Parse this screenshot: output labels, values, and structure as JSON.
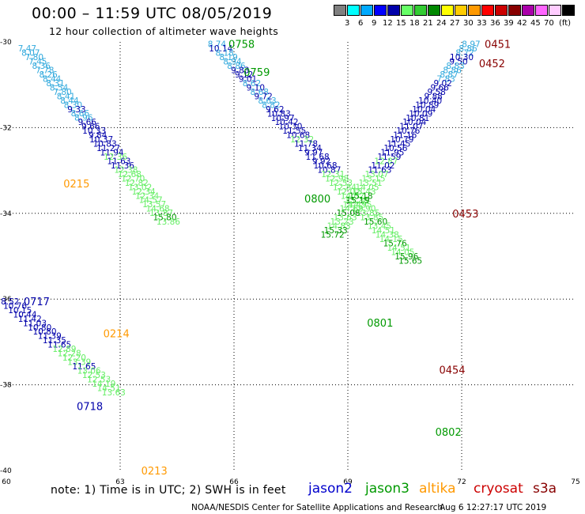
{
  "header": {
    "title": "00:00 – 11:59 UTC 08/05/2019",
    "subtitle": "12 hour collection of altimeter wave heights"
  },
  "scale": {
    "unit": "(ft)",
    "colors": [
      "#808080",
      "#00ffff",
      "#00aaff",
      "#0000ff",
      "#0000aa",
      "#66ff66",
      "#33cc33",
      "#008800",
      "#ffff00",
      "#ffcc00",
      "#ff9900",
      "#ff0000",
      "#cc0000",
      "#880000",
      "#aa00aa",
      "#ff66ff",
      "#ffccff",
      "#000000"
    ],
    "labels": [
      "3",
      "6",
      "9",
      "12",
      "15",
      "18",
      "21",
      "24",
      "27",
      "30",
      "33",
      "36",
      "39",
      "42",
      "45",
      "70"
    ]
  },
  "axes": {
    "x_ticks": [
      "60",
      "63",
      "66",
      "69",
      "72",
      "75"
    ],
    "y_ticks": [
      "-30",
      "-32",
      "-34",
      "-36",
      "-38",
      "-40"
    ]
  },
  "chart_data": {
    "type": "scatter",
    "x_range": [
      60,
      75
    ],
    "y_range": [
      -40,
      -30
    ],
    "grid": true,
    "x_ticks": [
      60,
      63,
      66,
      69,
      72,
      75
    ],
    "y_ticks": [
      -30,
      -32,
      -34,
      -36,
      -38,
      -40
    ],
    "colors": {
      "c": "#33aadd",
      "b": "#0000aa",
      "lg": "#66ee66",
      "g": "#009900",
      "o": "#ff9900",
      "r": "#880000"
    },
    "annotations": [
      {
        "text": "0758",
        "lon": 66.2,
        "lat": -30.05,
        "c": "g"
      },
      {
        "text": "0759",
        "lon": 66.6,
        "lat": -30.7,
        "c": "g"
      },
      {
        "text": "0451",
        "lon": 72.95,
        "lat": -30.05,
        "c": "r"
      },
      {
        "text": "0452",
        "lon": 72.8,
        "lat": -30.5,
        "c": "r"
      },
      {
        "text": "0215",
        "lon": 61.85,
        "lat": -33.3,
        "c": "o"
      },
      {
        "text": "0800",
        "lon": 68.2,
        "lat": -33.65,
        "c": "g"
      },
      {
        "text": "0453",
        "lon": 72.1,
        "lat": -34.0,
        "c": "r"
      },
      {
        "text": "0717",
        "lon": 60.8,
        "lat": -36.05,
        "c": "b"
      },
      {
        "text": "0214",
        "lon": 62.9,
        "lat": -36.8,
        "c": "o"
      },
      {
        "text": "0801",
        "lon": 69.85,
        "lat": -36.55,
        "c": "g"
      },
      {
        "text": "0454",
        "lon": 71.75,
        "lat": -37.65,
        "c": "r"
      },
      {
        "text": "0718",
        "lon": 62.2,
        "lat": -38.5,
        "c": "b"
      },
      {
        "text": "0802",
        "lon": 71.65,
        "lat": -39.1,
        "c": "g"
      },
      {
        "text": "0213",
        "lon": 63.9,
        "lat": -40.0,
        "c": "o"
      }
    ],
    "tracks": [
      {
        "name": "0215",
        "lon0": 60.55,
        "lat0": -30.15,
        "dlon": 0.093,
        "c": "c",
        "labels": [
          [
            "7.47",
            "c"
          ],
          [
            "8.07",
            "c"
          ],
          [
            "7.80",
            "c"
          ],
          [
            "7.45",
            "c"
          ],
          [
            "8.36",
            "c"
          ],
          [
            "7.78",
            "c"
          ],
          [
            "8.26",
            "c"
          ],
          [
            "8.44",
            "c"
          ],
          [
            "8.31",
            "c"
          ],
          [
            "8.54",
            "c"
          ],
          [
            "7.80",
            "c"
          ],
          [
            "8.41",
            "c"
          ],
          [
            "8.44",
            "c"
          ],
          [
            "8.30",
            "c"
          ],
          [
            "9.33",
            "b"
          ],
          [
            "8.66",
            "c"
          ],
          [
            "8.96",
            "c"
          ],
          [
            "9.66",
            "b"
          ],
          [
            "9.66",
            "b"
          ],
          [
            "10.33",
            "b"
          ],
          [
            "9.84",
            "b"
          ],
          [
            "10.37",
            "b"
          ],
          [
            "10.83",
            "b"
          ],
          [
            "11.27",
            "b"
          ],
          [
            "11.94",
            "b"
          ],
          [
            "12.36",
            "lg"
          ],
          [
            "11.63",
            "b"
          ],
          [
            "11.36",
            "b"
          ],
          [
            "12.38",
            "lg"
          ],
          [
            "12.68",
            "lg"
          ],
          [
            "12.70",
            "lg"
          ],
          [
            "12.82",
            "lg"
          ],
          [
            "13.02",
            "lg"
          ],
          [
            "12.34",
            "lg"
          ],
          [
            "12.34",
            "lg"
          ],
          [
            "14.57",
            "lg"
          ],
          [
            "13.57",
            "lg"
          ],
          [
            "14.68",
            "lg"
          ],
          [
            "13.87",
            "lg"
          ],
          [
            "15.80",
            "g"
          ],
          [
            "13.86",
            "lg"
          ]
        ]
      },
      {
        "name": "0717",
        "lon0": 60.1,
        "lat0": -36.05,
        "dlon": 0.13,
        "c": "b",
        "labels": [
          [
            "8.52",
            "b"
          ],
          [
            "10.76",
            "b"
          ],
          [
            "10.15",
            "b"
          ],
          [
            "10.44",
            "b"
          ],
          [
            "11.42",
            "b"
          ],
          [
            "11.03",
            "b"
          ],
          [
            "10.80",
            "b"
          ],
          [
            "10.80",
            "b"
          ],
          [
            "11.39",
            "b"
          ],
          [
            "11.35",
            "b"
          ],
          [
            "11.65",
            "b"
          ],
          [
            "12.89",
            "lg"
          ],
          [
            "12.28",
            "lg"
          ],
          [
            "12.20",
            "lg"
          ],
          [
            "13.39",
            "lg"
          ],
          [
            "11.65",
            "b"
          ],
          [
            "13.06",
            "lg"
          ],
          [
            "12.53",
            "lg"
          ],
          [
            "12.53",
            "lg"
          ],
          [
            "14.19",
            "lg"
          ],
          [
            "14.51",
            "lg"
          ],
          [
            "13.63",
            "lg"
          ]
        ]
      },
      {
        "name": "0758",
        "lon0": 65.55,
        "lat0": -30.05,
        "dlon": 0.102,
        "c": "c",
        "labels": [
          [
            "8.74",
            "c"
          ],
          [
            "10.14",
            "b"
          ],
          [
            "8.18",
            "c"
          ],
          [
            "8.19",
            "c"
          ],
          [
            "8.94",
            "c"
          ],
          [
            "8.86",
            "c"
          ],
          [
            "9.83",
            "b"
          ],
          [
            "9.12",
            "b"
          ],
          [
            "9.01",
            "b"
          ],
          [
            "8.62",
            "c"
          ],
          [
            "9.10",
            "b"
          ],
          [
            "8.68",
            "c"
          ],
          [
            "9.72",
            "b"
          ],
          [
            "8.63",
            "c"
          ],
          [
            "8.82",
            "c"
          ],
          [
            "9.62",
            "b"
          ],
          [
            "10.83",
            "b"
          ],
          [
            "10.97",
            "b"
          ],
          [
            "10.42",
            "b"
          ],
          [
            "10.30",
            "b"
          ],
          [
            "11.55",
            "b"
          ],
          [
            "10.68",
            "b"
          ],
          [
            "12.32",
            "lg"
          ],
          [
            "11.78",
            "b"
          ],
          [
            "11.34",
            "b"
          ],
          [
            "9.97",
            "b"
          ],
          [
            "11.68",
            "b"
          ],
          [
            "9.92",
            "b"
          ],
          [
            "10.68",
            "b"
          ],
          [
            "10.87",
            "b"
          ],
          [
            "12.31",
            "lg"
          ],
          [
            "12.98",
            "lg"
          ],
          [
            "12.53",
            "lg"
          ],
          [
            "12.84",
            "lg"
          ],
          [
            "12.02",
            "lg"
          ],
          [
            "14.02",
            "lg"
          ],
          [
            "13.28",
            "lg"
          ],
          [
            "14.95",
            "lg"
          ],
          [
            "12.90",
            "lg"
          ],
          [
            "13.85",
            "lg"
          ],
          [
            "13.85",
            "lg"
          ],
          [
            "15.60",
            "g"
          ],
          [
            "13.45",
            "lg"
          ],
          [
            "14.51",
            "lg"
          ],
          [
            "14.38",
            "lg"
          ],
          [
            "14.15",
            "lg"
          ],
          [
            "15.76",
            "g"
          ],
          [
            "14.51",
            "lg"
          ],
          [
            "14.05",
            "lg"
          ],
          [
            "15.96",
            "g"
          ],
          [
            "15.65",
            "g"
          ]
        ]
      },
      {
        "name": "0451",
        "lon0": 72.25,
        "lat0": -30.05,
        "dlon": -0.083,
        "c": "c",
        "labels": [
          [
            "8.97",
            "c"
          ],
          [
            "8.86",
            "c"
          ],
          [
            "8.72",
            "c"
          ],
          [
            "10.30",
            "b"
          ],
          [
            "9.50",
            "b"
          ],
          [
            "8.83",
            "c"
          ],
          [
            "8.86",
            "c"
          ],
          [
            "8.87",
            "c"
          ],
          [
            "7.83",
            "c"
          ],
          [
            "9.02",
            "b"
          ],
          [
            "9.66",
            "b"
          ],
          [
            "9.58",
            "b"
          ],
          [
            "9.88",
            "b"
          ],
          [
            "10.40",
            "b"
          ],
          [
            "10.89",
            "b"
          ],
          [
            "10.04",
            "b"
          ],
          [
            "10.09",
            "b"
          ],
          [
            "10.81",
            "b"
          ],
          [
            "10.04",
            "b"
          ],
          [
            "11.07",
            "b"
          ],
          [
            "10.76",
            "b"
          ],
          [
            "11.16",
            "b"
          ],
          [
            "10.79",
            "b"
          ],
          [
            "11.45",
            "b"
          ],
          [
            "10.56",
            "b"
          ],
          [
            "11.95",
            "b"
          ],
          [
            "11.59",
            "b"
          ],
          [
            "12.87",
            "lg"
          ],
          [
            "11.02",
            "b"
          ],
          [
            "11.63",
            "b"
          ],
          [
            "13.07",
            "lg"
          ],
          [
            "13.15",
            "lg"
          ],
          [
            "13.51",
            "lg"
          ],
          [
            "14.05",
            "lg"
          ],
          [
            "13.43",
            "lg"
          ],
          [
            "15.18",
            "g"
          ],
          [
            "15.19",
            "g"
          ],
          [
            "14.45",
            "lg"
          ],
          [
            "14.69",
            "lg"
          ],
          [
            "15.06",
            "g"
          ],
          [
            "13.63",
            "lg"
          ],
          [
            "13.23",
            "lg"
          ],
          [
            "14.83",
            "lg"
          ],
          [
            "15.33",
            "g"
          ],
          [
            "15.72",
            "g"
          ]
        ]
      }
    ]
  },
  "footer": {
    "note": "note:  1) Time is in UTC; 2) SWH is in feet",
    "missions": [
      {
        "name": "jason2",
        "color": "#0000cc"
      },
      {
        "name": "jason3",
        "color": "#009900"
      },
      {
        "name": "altika",
        "color": "#ff9900"
      },
      {
        "name": "cryosat",
        "color": "#cc0000"
      },
      {
        "name": "s3a",
        "color": "#880000"
      }
    ],
    "credit": "NOAA/NESDIS Center for Satellite Applications and Research",
    "timestamp": "Aug  6 12:27:17 UTC 2019"
  }
}
